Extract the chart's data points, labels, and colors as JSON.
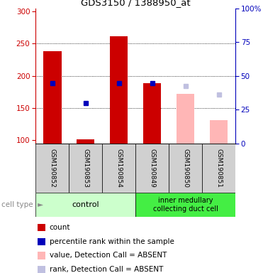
{
  "title": "GDS3150 / 1388950_at",
  "categories": [
    "GSM190852",
    "GSM190853",
    "GSM190854",
    "GSM190849",
    "GSM190850",
    "GSM190851"
  ],
  "ylim_left": [
    95,
    305
  ],
  "ylim_right": [
    0,
    100
  ],
  "yticks_left": [
    100,
    150,
    200,
    250,
    300
  ],
  "yticks_right": [
    0,
    25,
    50,
    75,
    100
  ],
  "ytick_labels_right": [
    "0",
    "25",
    "50",
    "75",
    "100%"
  ],
  "count_values": [
    238,
    null,
    261,
    188,
    null,
    null
  ],
  "count_values_small": [
    null,
    101,
    null,
    null,
    null,
    null
  ],
  "percentile_values": [
    188,
    null,
    188,
    188,
    null,
    null
  ],
  "percentile_values_small": [
    null,
    157,
    null,
    null,
    null,
    null
  ],
  "percentile_absent_rank": [
    null,
    null,
    null,
    null,
    184,
    171
  ],
  "percentile_absent_value": [
    null,
    null,
    null,
    null,
    172,
    131
  ],
  "absent_bar_color": "#ffb6b6",
  "absent_rank_color": "#c0c0e0",
  "red_color": "#cc0000",
  "blue_color": "#0000bb",
  "left_axis_color": "#cc0000",
  "right_axis_color": "#0000bb",
  "control_green": "#ccffcc",
  "inner_green": "#44ee44",
  "label_bg": "#d0d0d0",
  "legend_labels": [
    "count",
    "percentile rank within the sample",
    "value, Detection Call = ABSENT",
    "rank, Detection Call = ABSENT"
  ],
  "legend_colors": [
    "#cc0000",
    "#0000bb",
    "#ffb6b6",
    "#c0c0e0"
  ]
}
